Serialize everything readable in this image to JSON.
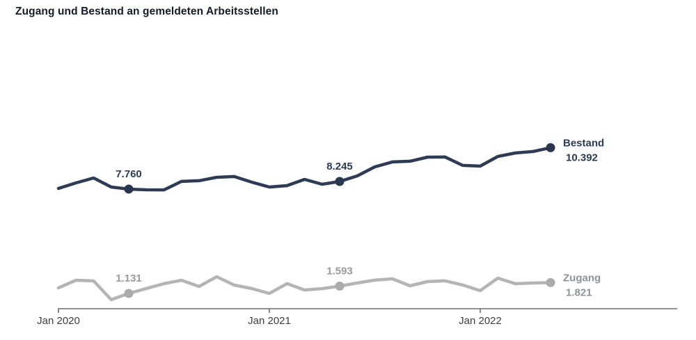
{
  "chart_data": {
    "type": "line",
    "title": "Zugang und Bestand an gemeldeten Arbeitsstellen",
    "title_color": "#171b24",
    "xlabel": "",
    "ylabel": "",
    "grid": false,
    "legend_position": "end-of-line",
    "ylim": [
      0,
      12000
    ],
    "n_points": 29,
    "x_start_month": "Jan 2020",
    "x_end_month": "Mai 2022",
    "axis": {
      "color": "#6e6e6e",
      "label_color": "#3d3d3d",
      "tick_labels": [
        {
          "label": "Jan 2020",
          "index": 0
        },
        {
          "label": "Jan 2021",
          "index": 12
        },
        {
          "label": "Jan 2022",
          "index": 24
        }
      ]
    },
    "series": [
      {
        "name": "Bestand",
        "color": "#2e3b55",
        "dot_color": "#2a364e",
        "value_label_color": "#2e3b55",
        "end_label_color": "#2e3b55",
        "values": [
          7804,
          8158,
          8467,
          7893,
          7760,
          7716,
          7712,
          8250,
          8295,
          8511,
          8556,
          8202,
          7893,
          7981,
          8379,
          8069,
          8245,
          8600,
          9174,
          9484,
          9528,
          9793,
          9801,
          9263,
          9219,
          9837,
          10058,
          10147,
          10392
        ],
        "marked_points": [
          {
            "index": 4,
            "label": "7.760"
          },
          {
            "index": 16,
            "label": "8.245"
          }
        ],
        "end_label": {
          "name": "Bestand",
          "value": "10.392"
        }
      },
      {
        "name": "Zugang",
        "color": "#b4b4b4",
        "dot_color": "#ababab",
        "value_label_color": "#9a9a9a",
        "end_label_color": "#8f9296",
        "values": [
          1485,
          1970,
          1927,
          733,
          1131,
          1443,
          1750,
          1968,
          1573,
          2192,
          1661,
          1442,
          1128,
          1752,
          1352,
          1438,
          1593,
          1794,
          1975,
          2059,
          1617,
          1882,
          1929,
          1665,
          1308,
          2103,
          1748,
          1794,
          1821
        ],
        "marked_points": [
          {
            "index": 4,
            "label": "1.131"
          },
          {
            "index": 16,
            "label": "1.593"
          }
        ],
        "end_label": {
          "name": "Zugang",
          "value": "1.821"
        }
      }
    ]
  }
}
